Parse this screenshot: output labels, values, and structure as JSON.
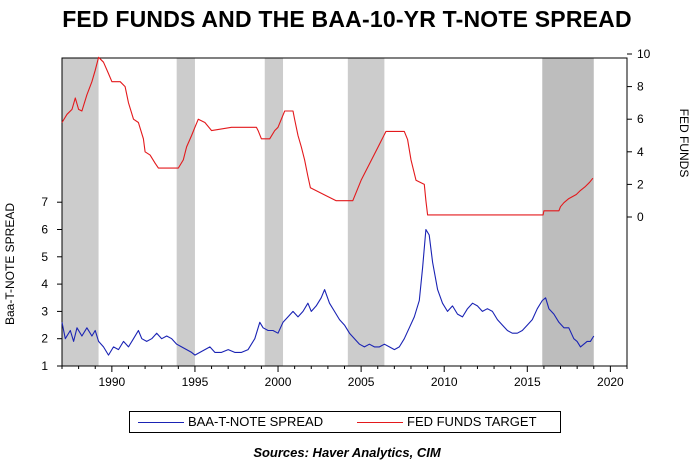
{
  "chart_data": {
    "type": "line",
    "title": "FED FUNDS AND THE BAA-10-YR T-NOTE SPREAD",
    "source": "Sources:  Haver Analytics, CIM",
    "colors": {
      "spread": "#1a23b4",
      "fed_funds": "#e3191c",
      "recession_shade": "#cccccc"
    },
    "x_axis": {
      "range": [
        1987.0,
        2021.0
      ],
      "ticks": [
        1990,
        1995,
        2000,
        2005,
        2010,
        2015,
        2020
      ]
    },
    "left_axis": {
      "label": "Baa-T-NOTE SPREAD",
      "ticks": [
        1,
        2,
        3,
        4,
        5,
        6,
        7
      ]
    },
    "right_axis": {
      "label": "FED FUNDS",
      "ticks": [
        0,
        2,
        4,
        6,
        8,
        10
      ]
    },
    "shaded_periods": [
      [
        1987.0,
        1989.2
      ],
      [
        1993.9,
        1995.0
      ],
      [
        1999.2,
        2000.3
      ],
      [
        2004.2,
        2006.4
      ],
      [
        2015.9,
        2019.0
      ]
    ],
    "grid": false,
    "legend_position": "bottom",
    "series": [
      {
        "name": "BAA-T-NOTE SPREAD",
        "axis": "left",
        "points": [
          [
            1987.0,
            2.6
          ],
          [
            1987.2,
            2.0
          ],
          [
            1987.5,
            2.3
          ],
          [
            1987.7,
            1.9
          ],
          [
            1987.9,
            2.4
          ],
          [
            1988.2,
            2.1
          ],
          [
            1988.5,
            2.4
          ],
          [
            1988.8,
            2.1
          ],
          [
            1989.0,
            2.3
          ],
          [
            1989.2,
            1.9
          ],
          [
            1989.5,
            1.7
          ],
          [
            1989.8,
            1.4
          ],
          [
            1990.1,
            1.7
          ],
          [
            1990.4,
            1.6
          ],
          [
            1990.7,
            1.9
          ],
          [
            1991.0,
            1.7
          ],
          [
            1991.3,
            2.0
          ],
          [
            1991.6,
            2.3
          ],
          [
            1991.8,
            2.0
          ],
          [
            1992.1,
            1.9
          ],
          [
            1992.4,
            2.0
          ],
          [
            1992.7,
            2.2
          ],
          [
            1993.0,
            2.0
          ],
          [
            1993.3,
            2.1
          ],
          [
            1993.6,
            2.0
          ],
          [
            1993.9,
            1.8
          ],
          [
            1994.2,
            1.7
          ],
          [
            1994.5,
            1.6
          ],
          [
            1994.8,
            1.5
          ],
          [
            1995.0,
            1.4
          ],
          [
            1995.3,
            1.5
          ],
          [
            1995.6,
            1.6
          ],
          [
            1995.9,
            1.7
          ],
          [
            1996.2,
            1.5
          ],
          [
            1996.6,
            1.5
          ],
          [
            1997.0,
            1.6
          ],
          [
            1997.4,
            1.5
          ],
          [
            1997.8,
            1.5
          ],
          [
            1998.2,
            1.6
          ],
          [
            1998.6,
            2.0
          ],
          [
            1998.9,
            2.6
          ],
          [
            1999.1,
            2.4
          ],
          [
            1999.4,
            2.3
          ],
          [
            1999.7,
            2.3
          ],
          [
            2000.0,
            2.2
          ],
          [
            2000.3,
            2.6
          ],
          [
            2000.6,
            2.8
          ],
          [
            2000.9,
            3.0
          ],
          [
            2001.2,
            2.8
          ],
          [
            2001.5,
            3.0
          ],
          [
            2001.8,
            3.3
          ],
          [
            2002.0,
            3.0
          ],
          [
            2002.3,
            3.2
          ],
          [
            2002.6,
            3.5
          ],
          [
            2002.8,
            3.8
          ],
          [
            2003.1,
            3.3
          ],
          [
            2003.4,
            3.0
          ],
          [
            2003.7,
            2.7
          ],
          [
            2004.0,
            2.5
          ],
          [
            2004.3,
            2.2
          ],
          [
            2004.6,
            2.0
          ],
          [
            2004.9,
            1.8
          ],
          [
            2005.2,
            1.7
          ],
          [
            2005.5,
            1.8
          ],
          [
            2005.8,
            1.7
          ],
          [
            2006.1,
            1.7
          ],
          [
            2006.4,
            1.8
          ],
          [
            2006.7,
            1.7
          ],
          [
            2007.0,
            1.6
          ],
          [
            2007.3,
            1.7
          ],
          [
            2007.6,
            2.0
          ],
          [
            2007.9,
            2.4
          ],
          [
            2008.2,
            2.8
          ],
          [
            2008.5,
            3.4
          ],
          [
            2008.7,
            4.6
          ],
          [
            2008.9,
            6.0
          ],
          [
            2009.1,
            5.8
          ],
          [
            2009.3,
            4.8
          ],
          [
            2009.6,
            3.8
          ],
          [
            2009.9,
            3.3
          ],
          [
            2010.2,
            3.0
          ],
          [
            2010.5,
            3.2
          ],
          [
            2010.8,
            2.9
          ],
          [
            2011.1,
            2.8
          ],
          [
            2011.4,
            3.1
          ],
          [
            2011.7,
            3.3
          ],
          [
            2012.0,
            3.2
          ],
          [
            2012.3,
            3.0
          ],
          [
            2012.6,
            3.1
          ],
          [
            2012.9,
            3.0
          ],
          [
            2013.2,
            2.7
          ],
          [
            2013.5,
            2.5
          ],
          [
            2013.8,
            2.3
          ],
          [
            2014.1,
            2.2
          ],
          [
            2014.4,
            2.2
          ],
          [
            2014.7,
            2.3
          ],
          [
            2015.0,
            2.5
          ],
          [
            2015.3,
            2.7
          ],
          [
            2015.6,
            3.1
          ],
          [
            2015.9,
            3.4
          ],
          [
            2016.1,
            3.5
          ],
          [
            2016.3,
            3.1
          ],
          [
            2016.6,
            2.9
          ],
          [
            2016.9,
            2.6
          ],
          [
            2017.2,
            2.4
          ],
          [
            2017.5,
            2.4
          ],
          [
            2017.8,
            2.0
          ],
          [
            2018.0,
            1.9
          ],
          [
            2018.2,
            1.7
          ],
          [
            2018.4,
            1.8
          ],
          [
            2018.6,
            1.9
          ],
          [
            2018.8,
            1.9
          ],
          [
            2019.0,
            2.1
          ]
        ]
      },
      {
        "name": "FED FUNDS TARGET",
        "axis": "right",
        "points": [
          [
            1987.0,
            5.8
          ],
          [
            1987.3,
            6.3
          ],
          [
            1987.6,
            6.6
          ],
          [
            1987.8,
            7.3
          ],
          [
            1988.0,
            6.6
          ],
          [
            1988.2,
            6.5
          ],
          [
            1988.5,
            7.5
          ],
          [
            1988.8,
            8.3
          ],
          [
            1989.0,
            9.0
          ],
          [
            1989.2,
            9.8
          ],
          [
            1989.5,
            9.5
          ],
          [
            1989.8,
            8.8
          ],
          [
            1990.0,
            8.3
          ],
          [
            1990.5,
            8.3
          ],
          [
            1990.8,
            8.0
          ],
          [
            1991.0,
            7.0
          ],
          [
            1991.3,
            6.0
          ],
          [
            1991.6,
            5.8
          ],
          [
            1991.9,
            4.8
          ],
          [
            1992.0,
            4.0
          ],
          [
            1992.3,
            3.8
          ],
          [
            1992.6,
            3.3
          ],
          [
            1992.8,
            3.0
          ],
          [
            1994.0,
            3.0
          ],
          [
            1994.3,
            3.5
          ],
          [
            1994.5,
            4.3
          ],
          [
            1994.8,
            5.0
          ],
          [
            1995.0,
            5.5
          ],
          [
            1995.2,
            6.0
          ],
          [
            1995.6,
            5.8
          ],
          [
            1996.0,
            5.3
          ],
          [
            1997.2,
            5.5
          ],
          [
            1998.7,
            5.5
          ],
          [
            1998.8,
            5.3
          ],
          [
            1999.0,
            4.8
          ],
          [
            1999.5,
            4.8
          ],
          [
            1999.8,
            5.3
          ],
          [
            2000.0,
            5.5
          ],
          [
            2000.4,
            6.5
          ],
          [
            2000.9,
            6.5
          ],
          [
            2001.0,
            6.0
          ],
          [
            2001.2,
            5.0
          ],
          [
            2001.4,
            4.3
          ],
          [
            2001.6,
            3.5
          ],
          [
            2001.8,
            2.5
          ],
          [
            2001.95,
            1.8
          ],
          [
            2002.9,
            1.3
          ],
          [
            2003.5,
            1.0
          ],
          [
            2004.5,
            1.0
          ],
          [
            2005.0,
            2.25
          ],
          [
            2005.5,
            3.25
          ],
          [
            2006.0,
            4.25
          ],
          [
            2006.5,
            5.25
          ],
          [
            2007.6,
            5.25
          ],
          [
            2007.8,
            4.75
          ],
          [
            2008.0,
            3.5
          ],
          [
            2008.3,
            2.25
          ],
          [
            2008.8,
            2.0
          ],
          [
            2008.9,
            1.0
          ],
          [
            2009.0,
            0.13
          ],
          [
            2015.95,
            0.13
          ],
          [
            2016.0,
            0.38
          ],
          [
            2016.9,
            0.38
          ],
          [
            2017.0,
            0.63
          ],
          [
            2017.2,
            0.88
          ],
          [
            2017.5,
            1.13
          ],
          [
            2017.95,
            1.38
          ],
          [
            2018.2,
            1.63
          ],
          [
            2018.5,
            1.88
          ],
          [
            2018.75,
            2.13
          ],
          [
            2018.95,
            2.38
          ]
        ]
      }
    ]
  },
  "legend": {
    "spread_label": "BAA-T-NOTE SPREAD",
    "fed_label": "FED FUNDS TARGET"
  }
}
